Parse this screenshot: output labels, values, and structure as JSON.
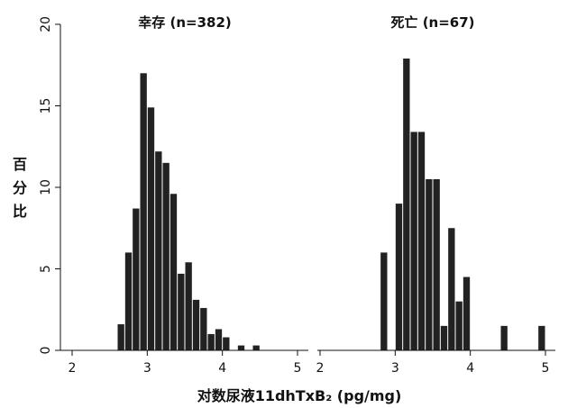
{
  "chart_data": {
    "type": "bar",
    "ylabel": "百分比",
    "xlabel": "对数尿液11dhTxB₂ (pg/mg)",
    "ylim": [
      0,
      20
    ],
    "yticks": [
      0,
      5,
      10,
      15,
      20
    ],
    "xlim": [
      2,
      5
    ],
    "xticks": [
      2,
      3,
      4,
      5
    ],
    "bin_width": 0.1,
    "grid": false,
    "bar_color": "#222222",
    "panels": [
      {
        "title": "幸存 (n=382)",
        "bins": [
          {
            "x": 2.6,
            "value": 1.6
          },
          {
            "x": 2.7,
            "value": 6.0
          },
          {
            "x": 2.8,
            "value": 8.7
          },
          {
            "x": 2.9,
            "value": 17.0
          },
          {
            "x": 3.0,
            "value": 14.9
          },
          {
            "x": 3.1,
            "value": 12.2
          },
          {
            "x": 3.2,
            "value": 11.5
          },
          {
            "x": 3.3,
            "value": 9.6
          },
          {
            "x": 3.4,
            "value": 4.7
          },
          {
            "x": 3.5,
            "value": 5.4
          },
          {
            "x": 3.6,
            "value": 3.1
          },
          {
            "x": 3.7,
            "value": 2.6
          },
          {
            "x": 3.8,
            "value": 1.0
          },
          {
            "x": 3.9,
            "value": 1.3
          },
          {
            "x": 4.0,
            "value": 0.8
          },
          {
            "x": 4.2,
            "value": 0.3
          },
          {
            "x": 4.4,
            "value": 0.3
          }
        ]
      },
      {
        "title": "死亡 (n=67)",
        "bins": [
          {
            "x": 2.8,
            "value": 6.0
          },
          {
            "x": 3.0,
            "value": 9.0
          },
          {
            "x": 3.1,
            "value": 17.9
          },
          {
            "x": 3.2,
            "value": 13.4
          },
          {
            "x": 3.3,
            "value": 13.4
          },
          {
            "x": 3.4,
            "value": 10.5
          },
          {
            "x": 3.5,
            "value": 10.5
          },
          {
            "x": 3.6,
            "value": 1.5
          },
          {
            "x": 3.7,
            "value": 7.5
          },
          {
            "x": 3.8,
            "value": 3.0
          },
          {
            "x": 3.9,
            "value": 4.5
          },
          {
            "x": 4.4,
            "value": 1.5
          },
          {
            "x": 4.9,
            "value": 1.5
          }
        ]
      }
    ]
  }
}
